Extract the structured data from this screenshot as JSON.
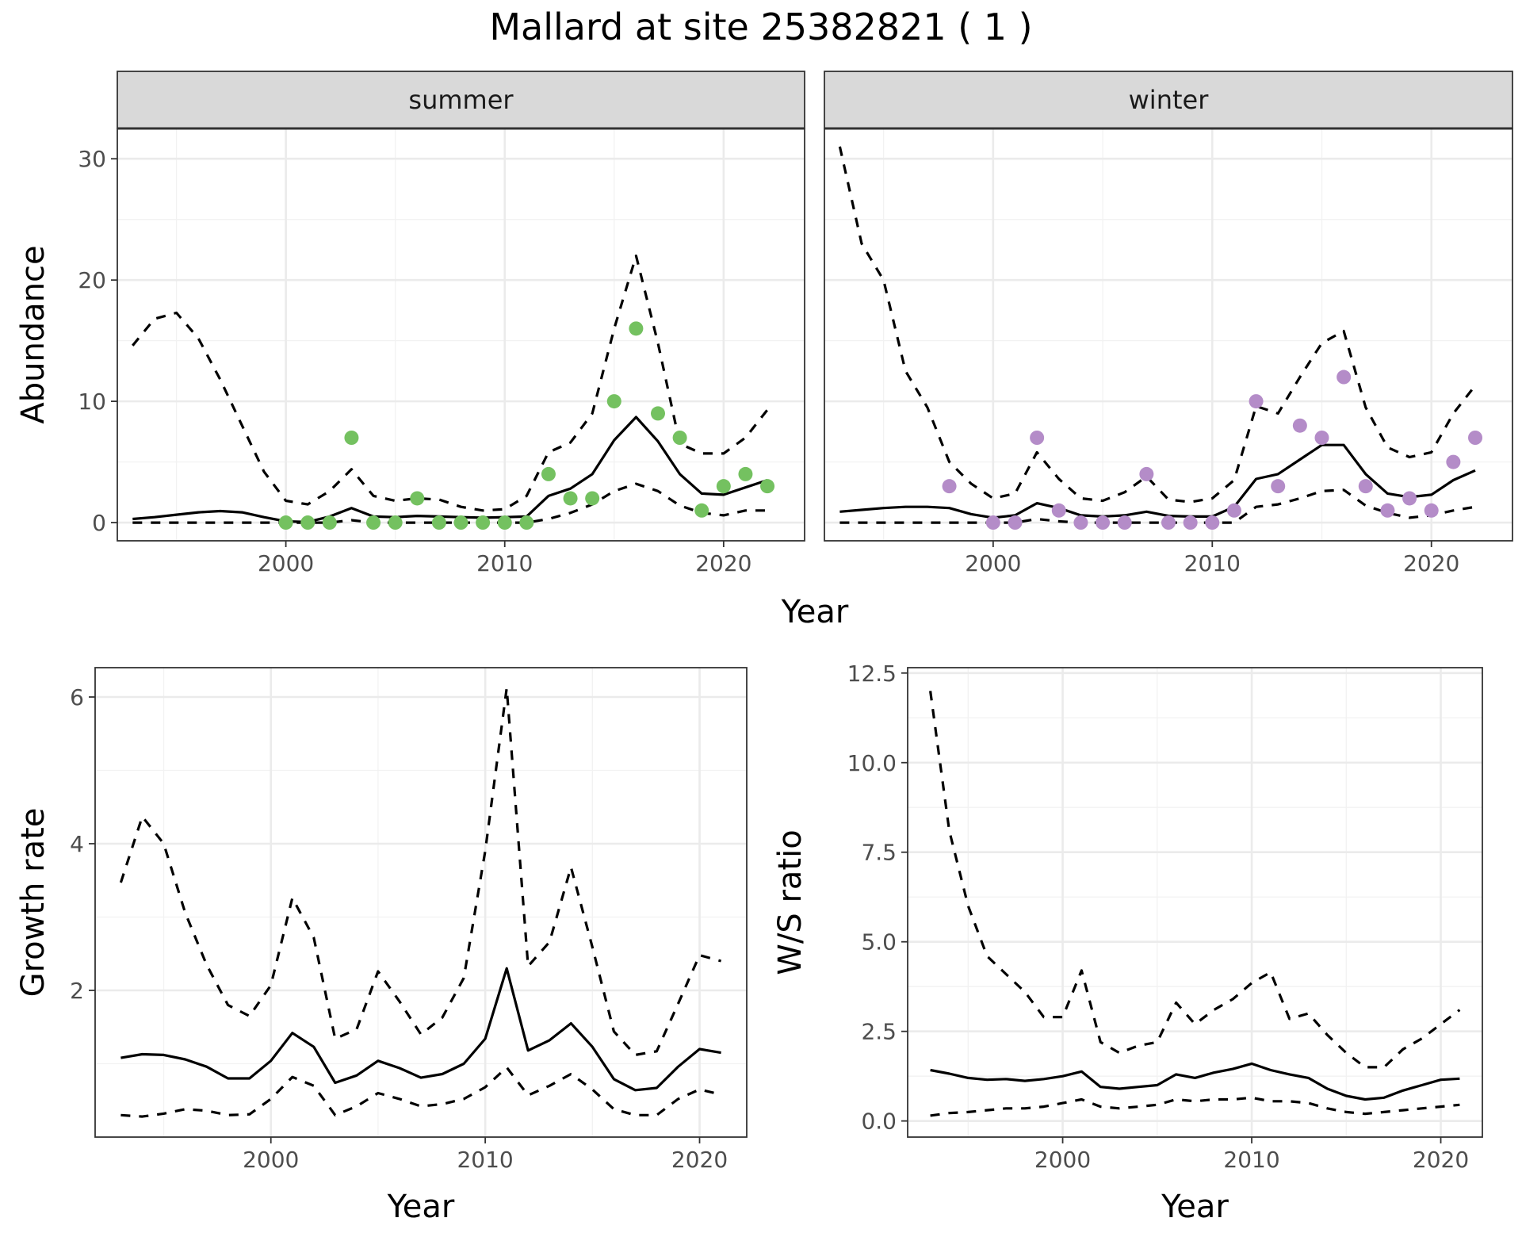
{
  "title": "Mallard at site 25382821 ( 1 )",
  "colors": {
    "summer_points": "#74c160",
    "winter_points": "#b48cc8"
  },
  "chart_data": [
    {
      "type": "line",
      "panel": "abundance",
      "facets": [
        "summer",
        "winter"
      ],
      "xlabel": "Year",
      "ylabel": "Abundance",
      "xlim": [
        1992.3,
        2023.7
      ],
      "ylim": [
        -1.5,
        32.5
      ],
      "x_ticks": [
        2000,
        2010,
        2020
      ],
      "y_ticks": [
        0,
        10,
        20,
        30
      ],
      "summer": {
        "x": [
          1993,
          1994,
          1995,
          1996,
          1997,
          1998,
          1999,
          2000,
          2001,
          2002,
          2003,
          2004,
          2005,
          2006,
          2007,
          2008,
          2009,
          2010,
          2011,
          2012,
          2013,
          2014,
          2015,
          2016,
          2017,
          2018,
          2019,
          2020,
          2021,
          2022
        ],
        "mean": [
          0.3,
          0.45,
          0.65,
          0.85,
          0.95,
          0.85,
          0.45,
          0.1,
          0.05,
          0.5,
          1.2,
          0.5,
          0.45,
          0.55,
          0.5,
          0.45,
          0.4,
          0.45,
          0.5,
          2.2,
          2.8,
          4.0,
          6.8,
          8.7,
          6.7,
          4.0,
          2.4,
          2.3,
          2.9,
          3.5
        ],
        "upper": [
          14.6,
          16.8,
          17.3,
          15.2,
          11.8,
          8.0,
          4.2,
          1.8,
          1.5,
          2.6,
          4.4,
          2.2,
          1.8,
          2.0,
          1.9,
          1.3,
          1.0,
          1.1,
          2.2,
          5.8,
          6.6,
          9.0,
          16.0,
          22.0,
          14.8,
          6.5,
          5.7,
          5.7,
          7.0,
          9.3
        ],
        "lower": [
          0,
          0,
          0,
          0,
          0,
          0,
          0,
          0,
          0,
          0,
          0.2,
          0,
          0,
          0,
          0,
          0,
          0,
          0,
          0,
          0.3,
          0.8,
          1.5,
          2.6,
          3.2,
          2.6,
          1.4,
          0.8,
          0.6,
          1.0,
          1.0
        ],
        "obs_x": [
          2000,
          2001,
          2002,
          2003,
          2004,
          2005,
          2006,
          2007,
          2008,
          2009,
          2010,
          2011,
          2012,
          2013,
          2014,
          2015,
          2016,
          2017,
          2018,
          2019,
          2020,
          2021,
          2022
        ],
        "obs_y": [
          0,
          0,
          0,
          7,
          0,
          0,
          2,
          0,
          0,
          0,
          0,
          0,
          4,
          2,
          2,
          10,
          16,
          9,
          7,
          1,
          3,
          4,
          3
        ]
      },
      "winter": {
        "x": [
          1993,
          1994,
          1995,
          1996,
          1997,
          1998,
          1999,
          2000,
          2001,
          2002,
          2003,
          2004,
          2005,
          2006,
          2007,
          2008,
          2009,
          2010,
          2011,
          2012,
          2013,
          2014,
          2015,
          2016,
          2017,
          2018,
          2019,
          2020,
          2021,
          2022
        ],
        "mean": [
          0.9,
          1.05,
          1.2,
          1.3,
          1.3,
          1.2,
          0.7,
          0.4,
          0.6,
          1.6,
          1.2,
          0.6,
          0.5,
          0.6,
          0.9,
          0.55,
          0.5,
          0.5,
          1.3,
          3.6,
          4.0,
          5.2,
          6.4,
          6.4,
          4.0,
          2.4,
          2.1,
          2.3,
          3.5,
          4.3
        ],
        "upper": [
          31.0,
          23.0,
          20.0,
          12.5,
          9.5,
          5.0,
          3.2,
          2.0,
          2.4,
          5.8,
          3.6,
          2.0,
          1.8,
          2.5,
          3.8,
          1.9,
          1.7,
          2.0,
          3.5,
          9.6,
          9.0,
          12.0,
          14.8,
          15.8,
          9.5,
          6.2,
          5.4,
          5.8,
          9.0,
          11.3
        ],
        "lower": [
          0,
          0,
          0,
          0,
          0,
          0,
          0,
          0,
          0,
          0.3,
          0.1,
          0,
          0,
          0,
          0,
          0,
          0,
          0,
          0,
          1.3,
          1.5,
          2.0,
          2.6,
          2.7,
          1.4,
          0.8,
          0.4,
          0.6,
          1.0,
          1.3
        ],
        "obs_x": [
          1998,
          2000,
          2001,
          2002,
          2003,
          2004,
          2005,
          2006,
          2007,
          2008,
          2009,
          2010,
          2011,
          2012,
          2013,
          2014,
          2015,
          2016,
          2017,
          2018,
          2019,
          2020,
          2021,
          2022
        ],
        "obs_y": [
          3,
          0,
          0,
          7,
          1,
          0,
          0,
          0,
          4,
          0,
          0,
          0,
          1,
          10,
          3,
          8,
          7,
          12,
          3,
          1,
          2,
          1,
          5,
          7
        ]
      }
    },
    {
      "type": "line",
      "panel": "growth",
      "xlabel": "Year",
      "ylabel": "Growth rate",
      "xlim": [
        1991.8,
        2022.2
      ],
      "ylim": [
        -0.0,
        6.4
      ],
      "x_ticks": [
        2000,
        2010,
        2020
      ],
      "y_ticks": [
        2,
        4,
        6
      ],
      "x": [
        1993,
        1994,
        1995,
        1996,
        1997,
        1998,
        1999,
        2000,
        2001,
        2002,
        2003,
        2004,
        2005,
        2006,
        2007,
        2008,
        2009,
        2010,
        2011,
        2012,
        2013,
        2014,
        2015,
        2016,
        2017,
        2018,
        2019,
        2020,
        2021
      ],
      "mean": [
        1.08,
        1.13,
        1.12,
        1.06,
        0.96,
        0.8,
        0.8,
        1.04,
        1.42,
        1.23,
        0.74,
        0.84,
        1.04,
        0.94,
        0.81,
        0.86,
        1.0,
        1.34,
        2.3,
        1.18,
        1.32,
        1.55,
        1.23,
        0.79,
        0.64,
        0.67,
        0.96,
        1.2,
        1.15
      ],
      "upper": [
        3.47,
        4.37,
        4.0,
        3.06,
        2.35,
        1.8,
        1.65,
        2.07,
        3.26,
        2.72,
        1.34,
        1.47,
        2.26,
        1.85,
        1.4,
        1.63,
        2.17,
        3.9,
        6.12,
        2.33,
        2.66,
        3.68,
        2.59,
        1.44,
        1.12,
        1.17,
        1.82,
        2.48,
        2.4
      ],
      "lower": [
        0.3,
        0.28,
        0.32,
        0.38,
        0.36,
        0.3,
        0.31,
        0.52,
        0.82,
        0.7,
        0.3,
        0.42,
        0.6,
        0.52,
        0.42,
        0.45,
        0.52,
        0.68,
        0.95,
        0.57,
        0.7,
        0.86,
        0.65,
        0.38,
        0.3,
        0.3,
        0.52,
        0.65,
        0.58
      ]
    },
    {
      "type": "line",
      "panel": "ratio",
      "xlabel": "Year",
      "ylabel": "W/S ratio",
      "xlim": [
        1991.8,
        2022.2
      ],
      "ylim": [
        -0.45,
        12.65
      ],
      "x_ticks": [
        2000,
        2010,
        2020
      ],
      "y_ticks": [
        "0.0",
        "2.5",
        "5.0",
        "7.5",
        "10.0",
        "12.5"
      ],
      "x": [
        1993,
        1994,
        1995,
        1996,
        1997,
        1998,
        1999,
        2000,
        2001,
        2002,
        2003,
        2004,
        2005,
        2006,
        2007,
        2008,
        2009,
        2010,
        2011,
        2012,
        2013,
        2014,
        2015,
        2016,
        2017,
        2018,
        2019,
        2020,
        2021
      ],
      "mean": [
        1.42,
        1.32,
        1.2,
        1.15,
        1.17,
        1.12,
        1.17,
        1.25,
        1.38,
        0.95,
        0.9,
        0.95,
        1.0,
        1.3,
        1.2,
        1.35,
        1.45,
        1.6,
        1.42,
        1.3,
        1.2,
        0.9,
        0.7,
        0.6,
        0.65,
        0.85,
        1.0,
        1.15,
        1.18
      ],
      "upper": [
        12.0,
        8.1,
        6.0,
        4.6,
        4.1,
        3.6,
        2.9,
        2.9,
        4.2,
        2.2,
        1.9,
        2.1,
        2.2,
        3.3,
        2.7,
        3.1,
        3.4,
        3.85,
        4.15,
        2.85,
        3.0,
        2.4,
        1.9,
        1.5,
        1.5,
        2.0,
        2.3,
        2.7,
        3.1
      ],
      "lower": [
        0.15,
        0.22,
        0.25,
        0.3,
        0.35,
        0.35,
        0.4,
        0.5,
        0.6,
        0.4,
        0.35,
        0.4,
        0.45,
        0.6,
        0.55,
        0.6,
        0.6,
        0.65,
        0.55,
        0.55,
        0.5,
        0.35,
        0.25,
        0.2,
        0.25,
        0.3,
        0.35,
        0.4,
        0.45
      ]
    }
  ]
}
